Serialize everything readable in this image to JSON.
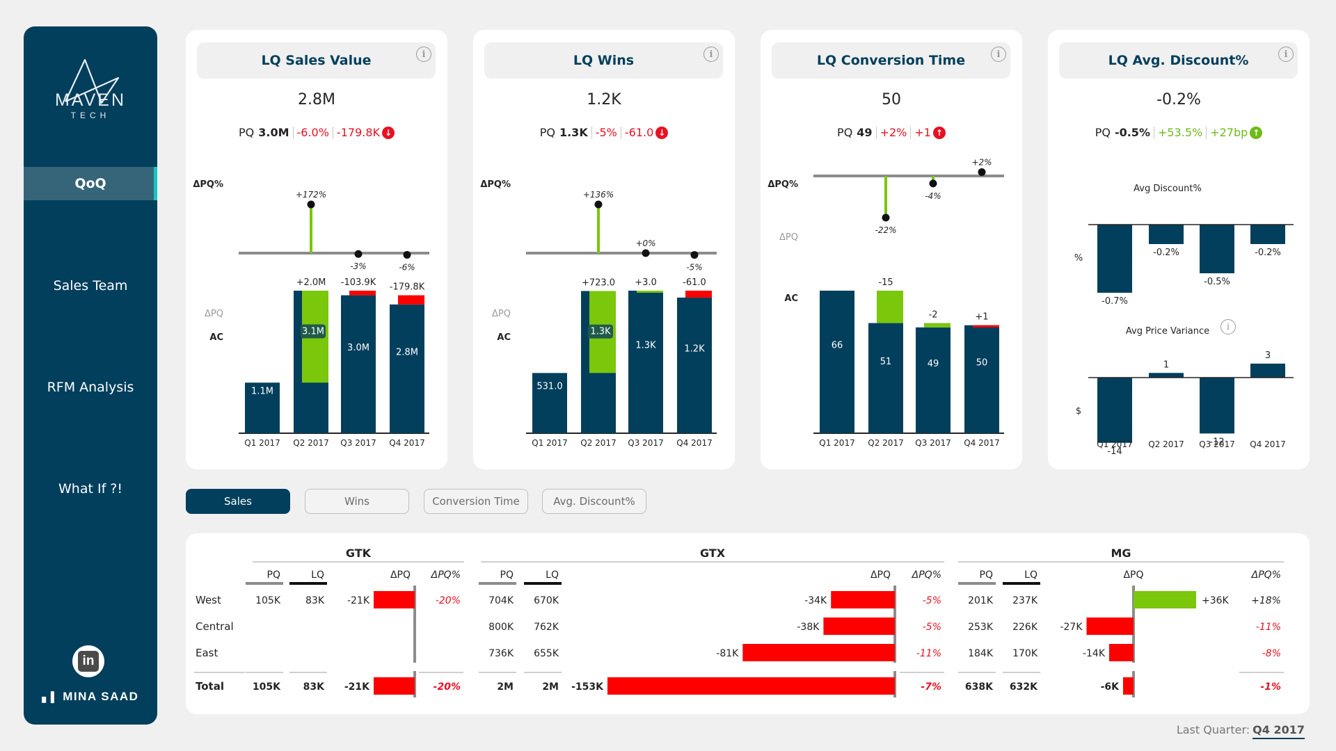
{
  "sidebar": {
    "brand_name": "MAVEN",
    "brand_sub": "TECH",
    "nav": [
      {
        "label": "QoQ",
        "active": true
      },
      {
        "label": "Sales Team",
        "active": false
      },
      {
        "label": "RFM Analysis",
        "active": false
      },
      {
        "label": "What If ?!",
        "active": false
      }
    ],
    "linkedin_label": "in",
    "author": "MINA SAAD"
  },
  "colors": {
    "navy": "#023f5c",
    "green": "#7ac70c",
    "red": "#ff0000",
    "grey": "#8c8c8c",
    "accent": "#16c4c4"
  },
  "cards": [
    {
      "title": "LQ Sales Value",
      "value": "2.8M",
      "pq_label": "PQ",
      "pq_value": "3.0M",
      "delta_pct": "-6.0%",
      "delta_abs": "-179.8K",
      "trend": "down",
      "trend_status": "bad"
    },
    {
      "title": "LQ Wins",
      "value": "1.2K",
      "pq_label": "PQ",
      "pq_value": "1.3K",
      "delta_pct": "-5%",
      "delta_abs": "-61.0",
      "trend": "down",
      "trend_status": "bad"
    },
    {
      "title": "LQ Conversion Time",
      "value": "50",
      "pq_label": "PQ",
      "pq_value": "49",
      "delta_pct": "+2%",
      "delta_abs": "+1",
      "trend": "up",
      "trend_status": "bad"
    },
    {
      "title": "LQ Avg. Discount%",
      "value": "-0.2%",
      "pq_label": "PQ",
      "pq_value": "-0.5%",
      "delta_pct": "+53.5%",
      "delta_abs": "+27bp",
      "trend": "up",
      "trend_status": "good"
    }
  ],
  "chart_data": [
    {
      "type": "bar",
      "title": "LQ Sales Value",
      "categories": [
        "Q1 2017",
        "Q2 2017",
        "Q3 2017",
        "Q4 2017"
      ],
      "row_labels": {
        "delta_pct": "ΔPQ%",
        "delta": "ΔPQ",
        "actual": "AC"
      },
      "series": [
        {
          "name": "AC",
          "values": [
            1.1,
            3.1,
            3.0,
            2.8
          ],
          "labels": [
            "1.1M",
            "3.1M",
            "3.0M",
            "2.8M"
          ]
        },
        {
          "name": "PQ",
          "values": [
            null,
            1.1,
            3.1,
            3.0
          ]
        },
        {
          "name": "ΔPQ",
          "values": [
            null,
            2.0,
            -0.1039,
            -0.1798
          ],
          "labels": [
            "",
            "+2.0M",
            "-103.9K",
            "-179.8K"
          ]
        },
        {
          "name": "ΔPQ%",
          "values": [
            null,
            172,
            -3,
            -6
          ],
          "labels": [
            "",
            "+172%",
            "-3%",
            "-6%"
          ]
        }
      ],
      "good_direction": "up"
    },
    {
      "type": "bar",
      "title": "LQ Wins",
      "categories": [
        "Q1 2017",
        "Q2 2017",
        "Q3 2017",
        "Q4 2017"
      ],
      "row_labels": {
        "delta_pct": "ΔPQ%",
        "delta": "ΔPQ",
        "actual": "AC"
      },
      "series": [
        {
          "name": "AC",
          "values": [
            531,
            1254,
            1257,
            1196
          ],
          "labels": [
            "531.0",
            "1.3K",
            "1.3K",
            "1.2K"
          ]
        },
        {
          "name": "PQ",
          "values": [
            null,
            531,
            1254,
            1257
          ]
        },
        {
          "name": "ΔPQ",
          "values": [
            null,
            723,
            3,
            -61
          ],
          "labels": [
            "",
            "+723.0",
            "+3.0",
            "-61.0"
          ]
        },
        {
          "name": "ΔPQ%",
          "values": [
            null,
            136,
            0,
            -5
          ],
          "labels": [
            "",
            "+136%",
            "+0%",
            "-5%"
          ]
        }
      ],
      "good_direction": "up"
    },
    {
      "type": "bar",
      "title": "LQ Conversion Time",
      "categories": [
        "Q1 2017",
        "Q2 2017",
        "Q3 2017",
        "Q4 2017"
      ],
      "row_labels": {
        "delta_pct": "ΔPQ%",
        "delta": "ΔPQ",
        "actual": "AC"
      },
      "series": [
        {
          "name": "AC",
          "values": [
            66,
            51,
            49,
            50
          ],
          "labels": [
            "66",
            "51",
            "49",
            "50"
          ]
        },
        {
          "name": "PQ",
          "values": [
            null,
            66,
            51,
            49
          ]
        },
        {
          "name": "ΔPQ",
          "values": [
            null,
            -15,
            -2,
            1
          ],
          "labels": [
            "",
            "-15",
            "-2",
            "+1"
          ]
        },
        {
          "name": "ΔPQ%",
          "values": [
            null,
            -22,
            -4,
            2
          ],
          "labels": [
            "",
            "-22%",
            "-4%",
            "+2%"
          ]
        }
      ],
      "good_direction": "down"
    },
    {
      "type": "bar",
      "title": "Avg Discount%",
      "categories": [
        "Q1 2017",
        "Q2 2017",
        "Q3 2017",
        "Q4 2017"
      ],
      "ylabel": "%",
      "values": [
        -0.7,
        -0.2,
        -0.5,
        -0.2
      ],
      "labels": [
        "-0.7%",
        "-0.2%",
        "-0.5%",
        "-0.2%"
      ]
    },
    {
      "type": "bar",
      "title": "Avg Price Variance",
      "categories": [
        "Q1 2017",
        "Q2 2017",
        "Q3 2017",
        "Q4 2017"
      ],
      "ylabel": "$",
      "values": [
        -14,
        1,
        -12,
        3
      ],
      "labels": [
        "-14",
        "1",
        "-12",
        "3"
      ]
    }
  ],
  "tabs": [
    {
      "label": "Sales",
      "active": true
    },
    {
      "label": "Wins",
      "active": false
    },
    {
      "label": "Conversion Time",
      "active": false
    },
    {
      "label": "Avg. Discount%",
      "active": false
    }
  ],
  "table": {
    "row_labels": [
      "West",
      "Central",
      "East"
    ],
    "total_label": "Total",
    "col_pq": "PQ",
    "col_lq": "LQ",
    "col_delta": "ΔPQ",
    "col_delta_pct": "ΔPQ%",
    "groups": [
      {
        "name": "GTK",
        "rows": [
          {
            "pq": "105K",
            "lq": "83K",
            "delta": "-21K",
            "delta_value": -21,
            "delta_pct": "-20%"
          },
          {
            "pq": "",
            "lq": "",
            "delta": "",
            "delta_value": null,
            "delta_pct": ""
          },
          {
            "pq": "",
            "lq": "",
            "delta": "",
            "delta_value": null,
            "delta_pct": ""
          }
        ],
        "total": {
          "pq": "105K",
          "lq": "83K",
          "delta": "-21K",
          "delta_value": -21,
          "delta_pct": "-20%"
        }
      },
      {
        "name": "GTX",
        "rows": [
          {
            "pq": "704K",
            "lq": "670K",
            "delta": "-34K",
            "delta_value": -34,
            "delta_pct": "-5%"
          },
          {
            "pq": "800K",
            "lq": "762K",
            "delta": "-38K",
            "delta_value": -38,
            "delta_pct": "-5%"
          },
          {
            "pq": "736K",
            "lq": "655K",
            "delta": "-81K",
            "delta_value": -81,
            "delta_pct": "-11%"
          }
        ],
        "total": {
          "pq": "2M",
          "lq": "2M",
          "delta": "-153K",
          "delta_value": -153,
          "delta_pct": "-7%"
        }
      },
      {
        "name": "MG",
        "rows": [
          {
            "pq": "201K",
            "lq": "237K",
            "delta": "+36K",
            "delta_value": 36,
            "delta_pct": "+18%"
          },
          {
            "pq": "253K",
            "lq": "226K",
            "delta": "-27K",
            "delta_value": -27,
            "delta_pct": "-11%"
          },
          {
            "pq": "184K",
            "lq": "170K",
            "delta": "-14K",
            "delta_value": -14,
            "delta_pct": "-8%"
          }
        ],
        "total": {
          "pq": "638K",
          "lq": "632K",
          "delta": "-6K",
          "delta_value": -6,
          "delta_pct": "-1%"
        }
      }
    ]
  },
  "footer": {
    "label": "Last Quarter:",
    "value": "Q4 2017"
  }
}
